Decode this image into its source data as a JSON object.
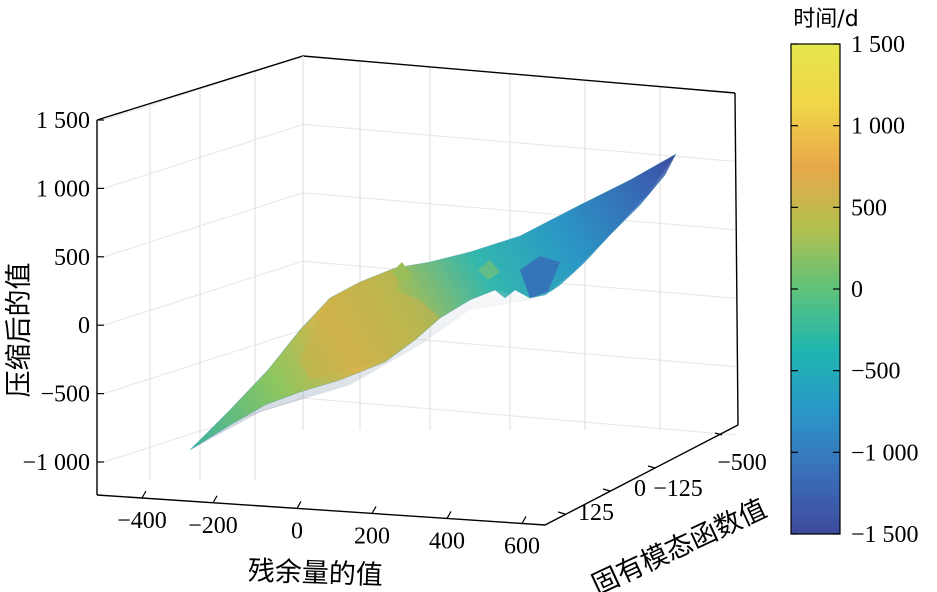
{
  "chart_data": {
    "type": "surface3d",
    "title": "",
    "axes": {
      "x": {
        "label": "残余量的值",
        "ticks": [
          "−400",
          "−200",
          "0",
          "200",
          "400",
          "600"
        ]
      },
      "y": {
        "label": "固有模态函数值",
        "ticks": [
          "125",
          "0",
          "−125",
          "−500"
        ]
      },
      "z": {
        "label": "压缩后的值",
        "range": [
          -1000,
          1500
        ],
        "ticks": [
          "1 500",
          "1 000",
          "500",
          "0",
          "−500",
          "−1 000"
        ]
      }
    },
    "colorbar": {
      "title": "时间/d",
      "range": [
        -1500,
        1500
      ],
      "ticks": [
        "1 500",
        "1 000",
        "500",
        "0",
        "−500",
        "−1 000",
        "−1 500"
      ],
      "colors": [
        "#3e4a9c",
        "#3a6fba",
        "#2b96c8",
        "#1fb6b0",
        "#5fc27a",
        "#b3c04d",
        "#e8a84a",
        "#f0d548",
        "#e6e64c"
      ]
    },
    "surface": {
      "x_range": [
        -400,
        500
      ],
      "z_range": [
        -950,
        1240
      ],
      "time_range": [
        -1500,
        1500
      ]
    },
    "grid": true
  }
}
